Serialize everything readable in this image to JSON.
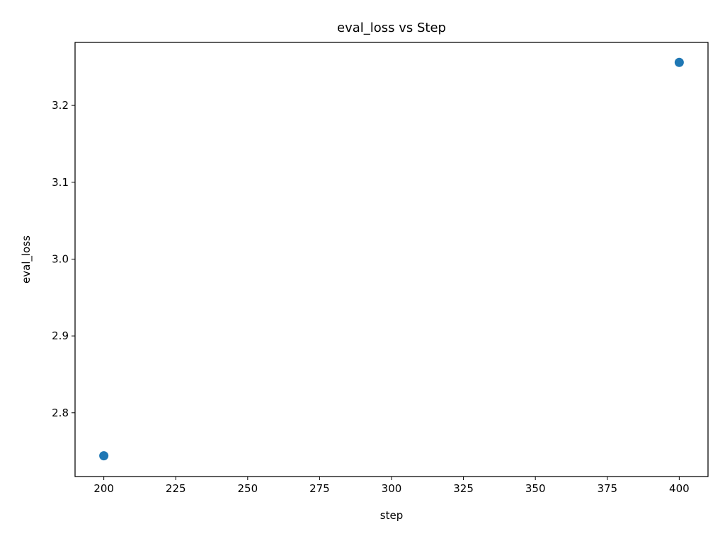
{
  "chart_data": {
    "type": "scatter",
    "title": "eval_loss vs Step",
    "xlabel": "step",
    "ylabel": "eval_loss",
    "xlim": [
      190,
      410
    ],
    "ylim": [
      2.717,
      3.282
    ],
    "xticks": [
      200,
      225,
      250,
      275,
      300,
      325,
      350,
      375,
      400
    ],
    "yticks": [
      2.8,
      2.9,
      3.0,
      3.1,
      3.2
    ],
    "grid": false,
    "series": [
      {
        "color": "#1f77b4",
        "points": [
          {
            "x": 200,
            "y": 2.744
          },
          {
            "x": 400,
            "y": 3.256
          }
        ]
      }
    ]
  }
}
